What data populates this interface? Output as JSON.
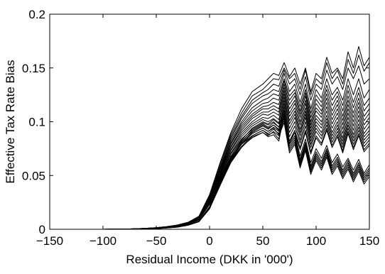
{
  "chart_data": {
    "type": "line",
    "title": "",
    "xlabel": "Residual Income (DKK in '000')",
    "ylabel": "Effective Tax Rate Bias",
    "xlim": [
      -150,
      150
    ],
    "ylim": [
      0,
      0.2
    ],
    "xticks": [
      -150,
      -100,
      -50,
      0,
      50,
      100,
      150
    ],
    "xtick_labels": [
      "−150",
      "−100",
      "−50",
      "0",
      "50",
      "100",
      "150"
    ],
    "yticks": [
      0,
      0.05,
      0.1,
      0.15,
      0.2
    ],
    "ytick_labels": [
      "0",
      "0.05",
      "0.1",
      "0.15",
      "0.2"
    ],
    "grid": false,
    "legend": "none",
    "line_color": "#000000",
    "x": [
      -150,
      -140,
      -130,
      -120,
      -110,
      -100,
      -90,
      -80,
      -70,
      -60,
      -50,
      -40,
      -30,
      -20,
      -10,
      0,
      10,
      20,
      30,
      40,
      50,
      55,
      60,
      65,
      70,
      75,
      80,
      85,
      90,
      95,
      100,
      105,
      110,
      115,
      120,
      125,
      130,
      135,
      140,
      145,
      150
    ],
    "series": [
      {
        "values": [
          0,
          0,
          0,
          0,
          0,
          0,
          0.0001,
          0.0002,
          0.0005,
          0.0009,
          0.0015,
          0.0025,
          0.004,
          0.0065,
          0.012,
          0.032,
          0.062,
          0.09,
          0.112,
          0.128,
          0.135,
          0.14,
          0.145,
          0.143,
          0.155,
          0.142,
          0.15,
          0.135,
          0.15,
          0.128,
          0.145,
          0.14,
          0.16,
          0.145,
          0.15,
          0.14,
          0.165,
          0.15,
          0.17,
          0.152,
          0.16
        ]
      },
      {
        "values": [
          0,
          0,
          0,
          0,
          0,
          0,
          0.0001,
          0.0002,
          0.0005,
          0.0009,
          0.0015,
          0.0025,
          0.004,
          0.0065,
          0.012,
          0.032,
          0.062,
          0.088,
          0.108,
          0.124,
          0.13,
          0.135,
          0.14,
          0.139,
          0.15,
          0.14,
          0.145,
          0.13,
          0.148,
          0.125,
          0.14,
          0.135,
          0.155,
          0.14,
          0.148,
          0.135,
          0.158,
          0.145,
          0.162,
          0.147,
          0.155
        ]
      },
      {
        "values": [
          0,
          0,
          0,
          0,
          0,
          0,
          0.0001,
          0.0002,
          0.0005,
          0.0009,
          0.0015,
          0.0025,
          0.004,
          0.0065,
          0.012,
          0.031,
          0.06,
          0.086,
          0.105,
          0.12,
          0.127,
          0.13,
          0.135,
          0.133,
          0.148,
          0.135,
          0.14,
          0.125,
          0.142,
          0.12,
          0.135,
          0.13,
          0.148,
          0.135,
          0.142,
          0.13,
          0.15,
          0.14,
          0.152,
          0.135,
          0.14
        ]
      },
      {
        "values": [
          0,
          0,
          0,
          0,
          0,
          0,
          0.0001,
          0.0002,
          0.0004,
          0.0008,
          0.0014,
          0.0024,
          0.0038,
          0.0062,
          0.011,
          0.03,
          0.058,
          0.084,
          0.103,
          0.117,
          0.124,
          0.126,
          0.13,
          0.128,
          0.145,
          0.128,
          0.135,
          0.118,
          0.135,
          0.112,
          0.13,
          0.122,
          0.14,
          0.125,
          0.132,
          0.12,
          0.14,
          0.125,
          0.14,
          0.122,
          0.13
        ]
      },
      {
        "values": [
          0,
          0,
          0,
          0,
          0,
          0,
          0.0001,
          0.0002,
          0.0004,
          0.0008,
          0.0014,
          0.0024,
          0.0038,
          0.0062,
          0.011,
          0.03,
          0.057,
          0.082,
          0.1,
          0.113,
          0.12,
          0.122,
          0.126,
          0.124,
          0.14,
          0.124,
          0.13,
          0.114,
          0.13,
          0.108,
          0.125,
          0.118,
          0.134,
          0.12,
          0.128,
          0.115,
          0.134,
          0.118,
          0.132,
          0.115,
          0.122
        ]
      },
      {
        "values": [
          0,
          0,
          0,
          0,
          0,
          0,
          0.0001,
          0.0002,
          0.0004,
          0.0008,
          0.0014,
          0.0024,
          0.0038,
          0.006,
          0.011,
          0.029,
          0.056,
          0.08,
          0.098,
          0.11,
          0.117,
          0.118,
          0.122,
          0.12,
          0.138,
          0.12,
          0.127,
          0.11,
          0.127,
          0.104,
          0.121,
          0.114,
          0.13,
          0.115,
          0.124,
          0.11,
          0.129,
          0.113,
          0.127,
          0.11,
          0.117
        ]
      },
      {
        "values": [
          0,
          0,
          0,
          0,
          0,
          0,
          0.0001,
          0.0002,
          0.0004,
          0.0008,
          0.0013,
          0.0023,
          0.0036,
          0.006,
          0.01,
          0.028,
          0.055,
          0.079,
          0.096,
          0.107,
          0.114,
          0.115,
          0.118,
          0.116,
          0.135,
          0.116,
          0.124,
          0.107,
          0.124,
          0.1,
          0.117,
          0.11,
          0.126,
          0.11,
          0.12,
          0.105,
          0.124,
          0.108,
          0.122,
          0.105,
          0.112
        ]
      },
      {
        "values": [
          0,
          0,
          0,
          0,
          0,
          0,
          0.0001,
          0.0002,
          0.0004,
          0.0008,
          0.0013,
          0.0023,
          0.0036,
          0.006,
          0.01,
          0.028,
          0.054,
          0.077,
          0.094,
          0.105,
          0.112,
          0.112,
          0.115,
          0.112,
          0.132,
          0.112,
          0.12,
          0.104,
          0.12,
          0.097,
          0.113,
          0.107,
          0.122,
          0.106,
          0.116,
          0.101,
          0.12,
          0.104,
          0.118,
          0.101,
          0.108
        ]
      },
      {
        "values": [
          0,
          0,
          0,
          0,
          0,
          0,
          0.0001,
          0.0002,
          0.0004,
          0.0007,
          0.0012,
          0.0022,
          0.0035,
          0.0058,
          0.01,
          0.027,
          0.053,
          0.076,
          0.092,
          0.103,
          0.109,
          0.109,
          0.112,
          0.109,
          0.129,
          0.108,
          0.117,
          0.1,
          0.117,
          0.094,
          0.11,
          0.104,
          0.118,
          0.102,
          0.112,
          0.097,
          0.116,
          0.1,
          0.114,
          0.097,
          0.104
        ]
      },
      {
        "values": [
          0,
          0,
          0,
          0,
          0,
          0,
          0.0001,
          0.0002,
          0.0004,
          0.0007,
          0.0012,
          0.0022,
          0.0035,
          0.0058,
          0.01,
          0.027,
          0.052,
          0.074,
          0.09,
          0.1,
          0.107,
          0.106,
          0.109,
          0.106,
          0.126,
          0.105,
          0.113,
          0.097,
          0.113,
          0.091,
          0.106,
          0.1,
          0.114,
          0.098,
          0.108,
          0.093,
          0.112,
          0.096,
          0.11,
          0.093,
          0.1
        ]
      },
      {
        "values": [
          0,
          0,
          0,
          0,
          0,
          0,
          0.0001,
          0.0002,
          0.0004,
          0.0007,
          0.0012,
          0.002,
          0.0033,
          0.0055,
          0.0095,
          0.026,
          0.051,
          0.073,
          0.088,
          0.098,
          0.104,
          0.103,
          0.106,
          0.102,
          0.123,
          0.101,
          0.11,
          0.093,
          0.11,
          0.088,
          0.103,
          0.097,
          0.11,
          0.094,
          0.104,
          0.089,
          0.108,
          0.092,
          0.106,
          0.089,
          0.096
        ]
      },
      {
        "values": [
          0,
          0,
          0,
          0,
          0,
          0,
          0.0001,
          0.0002,
          0.0004,
          0.0007,
          0.0012,
          0.002,
          0.0033,
          0.0055,
          0.0095,
          0.026,
          0.05,
          0.071,
          0.086,
          0.096,
          0.102,
          0.1,
          0.103,
          0.099,
          0.12,
          0.098,
          0.107,
          0.09,
          0.107,
          0.085,
          0.1,
          0.094,
          0.106,
          0.09,
          0.1,
          0.085,
          0.104,
          0.088,
          0.102,
          0.086,
          0.092
        ]
      },
      {
        "values": [
          0,
          0,
          0,
          0,
          0,
          0,
          0.0001,
          0.0002,
          0.0003,
          0.0006,
          0.0011,
          0.0019,
          0.0031,
          0.0052,
          0.009,
          0.025,
          0.049,
          0.07,
          0.084,
          0.093,
          0.099,
          0.097,
          0.1,
          0.095,
          0.117,
          0.094,
          0.104,
          0.087,
          0.104,
          0.082,
          0.097,
          0.09,
          0.103,
          0.087,
          0.097,
          0.082,
          0.1,
          0.085,
          0.098,
          0.083,
          0.089
        ]
      },
      {
        "values": [
          0,
          0,
          0,
          0,
          0,
          0,
          0.0001,
          0.0002,
          0.0003,
          0.0006,
          0.0011,
          0.0019,
          0.0031,
          0.0052,
          0.009,
          0.025,
          0.048,
          0.068,
          0.082,
          0.091,
          0.097,
          0.094,
          0.097,
          0.092,
          0.114,
          0.09,
          0.1,
          0.083,
          0.1,
          0.079,
          0.094,
          0.087,
          0.1,
          0.084,
          0.094,
          0.079,
          0.097,
          0.082,
          0.095,
          0.08,
          0.086
        ]
      },
      {
        "values": [
          0,
          0,
          0,
          0,
          0,
          0,
          0.0001,
          0.0002,
          0.0003,
          0.0006,
          0.001,
          0.0018,
          0.003,
          0.005,
          0.0088,
          0.024,
          0.047,
          0.067,
          0.08,
          0.089,
          0.094,
          0.091,
          0.094,
          0.088,
          0.111,
          0.086,
          0.096,
          0.08,
          0.096,
          0.076,
          0.091,
          0.084,
          0.097,
          0.081,
          0.091,
          0.076,
          0.094,
          0.079,
          0.092,
          0.077,
          0.083
        ]
      },
      {
        "values": [
          0,
          0,
          0,
          0,
          0,
          0,
          0.0001,
          0.0002,
          0.0003,
          0.0006,
          0.001,
          0.0018,
          0.003,
          0.005,
          0.0088,
          0.024,
          0.046,
          0.066,
          0.079,
          0.087,
          0.092,
          0.088,
          0.09,
          0.084,
          0.108,
          0.082,
          0.092,
          0.076,
          0.092,
          0.072,
          0.087,
          0.08,
          0.094,
          0.078,
          0.088,
          0.073,
          0.091,
          0.076,
          0.089,
          0.074,
          0.08
        ]
      },
      {
        "values": [
          0,
          0,
          0,
          0,
          0,
          0,
          0.0001,
          0.0002,
          0.0003,
          0.0005,
          0.001,
          0.0017,
          0.0028,
          0.0048,
          0.0085,
          0.023,
          0.045,
          0.064,
          0.077,
          0.085,
          0.09,
          0.086,
          0.088,
          0.082,
          0.106,
          0.08,
          0.09,
          0.074,
          0.09,
          0.07,
          0.085,
          0.078,
          0.092,
          0.076,
          0.086,
          0.071,
          0.089,
          0.074,
          0.087,
          0.072,
          0.078
        ]
      },
      {
        "values": [
          0,
          0,
          0,
          0,
          0,
          0,
          0,
          0.0001,
          0.0002,
          0.0004,
          0.0008,
          0.0014,
          0.0024,
          0.0042,
          0.0075,
          0.021,
          0.046,
          0.068,
          0.083,
          0.094,
          0.1,
          0.098,
          0.102,
          0.098,
          0.11,
          0.082,
          0.09,
          0.068,
          0.084,
          0.062,
          0.075,
          0.066,
          0.078,
          0.062,
          0.07,
          0.058,
          0.066,
          0.055,
          0.065,
          0.052,
          0.06
        ]
      },
      {
        "values": [
          0,
          0,
          0,
          0,
          0,
          0,
          0,
          0.0001,
          0.0002,
          0.0004,
          0.0008,
          0.0014,
          0.0024,
          0.0042,
          0.0075,
          0.021,
          0.045,
          0.066,
          0.081,
          0.092,
          0.098,
          0.095,
          0.099,
          0.095,
          0.107,
          0.079,
          0.087,
          0.065,
          0.081,
          0.059,
          0.072,
          0.063,
          0.075,
          0.059,
          0.067,
          0.055,
          0.064,
          0.052,
          0.062,
          0.05,
          0.057
        ]
      },
      {
        "values": [
          0,
          0,
          0,
          0,
          0,
          0,
          0,
          0.0001,
          0.0002,
          0.0004,
          0.0007,
          0.0013,
          0.0022,
          0.004,
          0.0072,
          0.02,
          0.044,
          0.065,
          0.08,
          0.09,
          0.096,
          0.093,
          0.097,
          0.093,
          0.105,
          0.077,
          0.085,
          0.063,
          0.079,
          0.057,
          0.07,
          0.061,
          0.073,
          0.057,
          0.065,
          0.053,
          0.062,
          0.05,
          0.06,
          0.048,
          0.055
        ]
      },
      {
        "values": [
          0,
          0,
          0,
          0,
          0,
          0,
          0,
          0.0001,
          0.0002,
          0.0004,
          0.0007,
          0.0013,
          0.0022,
          0.004,
          0.0072,
          0.02,
          0.043,
          0.064,
          0.079,
          0.089,
          0.094,
          0.091,
          0.095,
          0.091,
          0.103,
          0.075,
          0.083,
          0.061,
          0.077,
          0.055,
          0.068,
          0.059,
          0.071,
          0.055,
          0.063,
          0.051,
          0.06,
          0.048,
          0.058,
          0.046,
          0.053
        ]
      },
      {
        "values": [
          0,
          0,
          0,
          0,
          0,
          0,
          0,
          0.0001,
          0.0002,
          0.0003,
          0.0006,
          0.0012,
          0.002,
          0.0038,
          0.007,
          0.019,
          0.042,
          0.063,
          0.077,
          0.087,
          0.092,
          0.089,
          0.093,
          0.089,
          0.101,
          0.073,
          0.081,
          0.059,
          0.075,
          0.053,
          0.066,
          0.057,
          0.069,
          0.053,
          0.061,
          0.049,
          0.058,
          0.046,
          0.056,
          0.044,
          0.051
        ]
      },
      {
        "values": [
          0,
          0,
          0,
          0,
          0,
          0,
          0,
          0.0001,
          0.0002,
          0.0003,
          0.0006,
          0.0012,
          0.002,
          0.0038,
          0.007,
          0.019,
          0.041,
          0.062,
          0.076,
          0.086,
          0.09,
          0.087,
          0.091,
          0.087,
          0.099,
          0.071,
          0.079,
          0.057,
          0.073,
          0.051,
          0.064,
          0.055,
          0.067,
          0.051,
          0.059,
          0.047,
          0.056,
          0.044,
          0.054,
          0.042,
          0.049
        ]
      }
    ]
  }
}
